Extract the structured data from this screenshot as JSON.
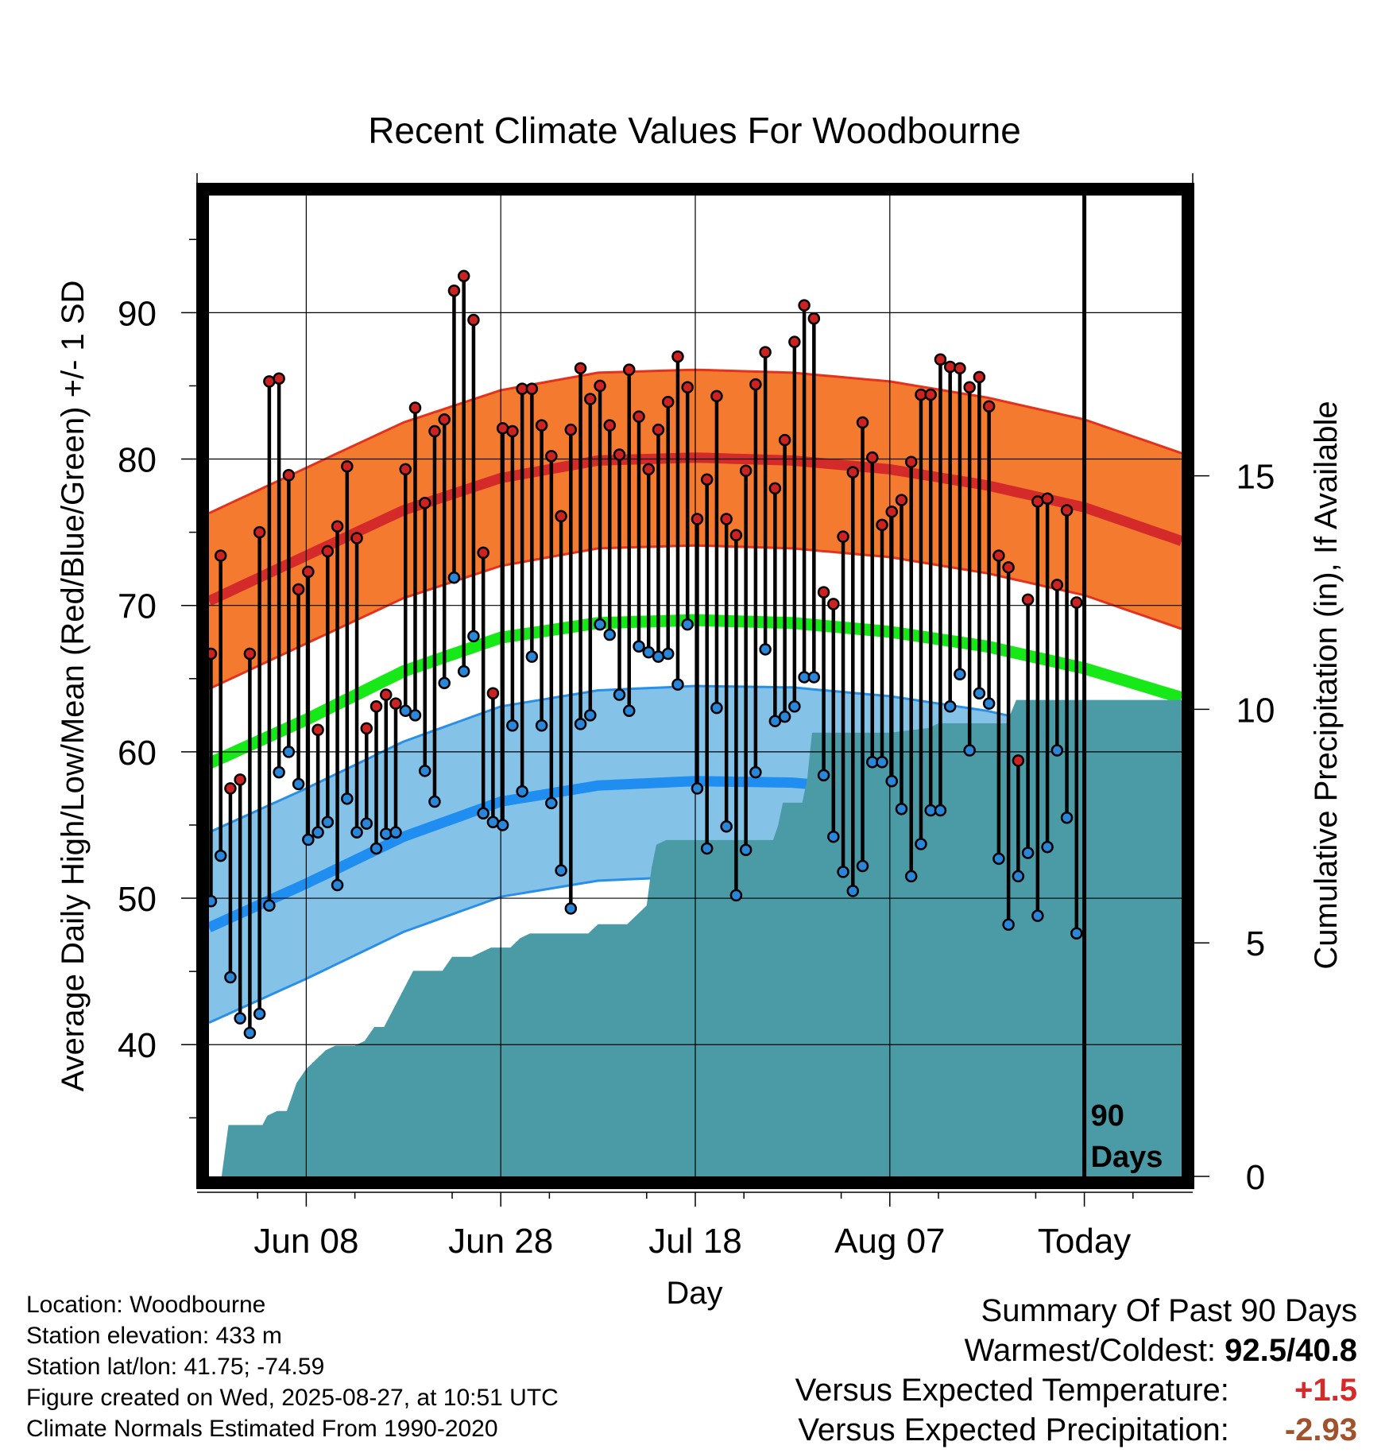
{
  "chart_data": {
    "type": "line",
    "title": "Recent Climate Values For Woodbourne",
    "xlabel": "Day",
    "ylabel": "Average Daily High/Low/Mean (Red/Blue/Green) +/- 1 SD",
    "y2label": "Cumulative Precipitation (in), If Available",
    "ylim": [
      31,
      98
    ],
    "y2lim": [
      0,
      21
    ],
    "yticks": [
      40,
      50,
      60,
      70,
      80,
      90
    ],
    "y2ticks": [
      0,
      5,
      10,
      15
    ],
    "x_start_day_index": 0,
    "x_end_day_index": 100,
    "xticks": [
      {
        "day": 10,
        "label": "Jun 08"
      },
      {
        "day": 30,
        "label": "Jun 28"
      },
      {
        "day": 50,
        "label": "Jul 18"
      },
      {
        "day": 70,
        "label": "Aug 07"
      },
      {
        "day": 90,
        "label": "Today"
      }
    ],
    "today_marker_label": [
      "90",
      "Days"
    ],
    "grid": true,
    "normal_high": {
      "days": [
        0,
        10,
        20,
        30,
        40,
        50,
        60,
        70,
        80,
        90,
        100
      ],
      "mean": [
        70.3,
        73.4,
        76.5,
        78.7,
        79.9,
        80.1,
        79.9,
        79.3,
        78.2,
        76.7,
        74.4
      ],
      "sd": 6.0
    },
    "normal_mean": {
      "days": [
        0,
        10,
        20,
        30,
        40,
        50,
        60,
        70,
        80,
        90,
        100
      ],
      "values": [
        59.2,
        62.2,
        65.5,
        67.8,
        68.8,
        69.0,
        68.8,
        68.2,
        67.2,
        65.7,
        63.7
      ]
    },
    "normal_low": {
      "days": [
        0,
        10,
        20,
        30,
        40,
        50,
        60,
        70,
        80,
        90,
        100
      ],
      "mean": [
        48.0,
        51.0,
        54.2,
        56.6,
        57.7,
        58.0,
        57.9,
        57.3,
        56.3,
        54.8,
        52.8
      ],
      "sd": 6.5
    },
    "series": [
      {
        "name": "High",
        "values": [
          66.7,
          73.4,
          57.5,
          58.1,
          66.7,
          75.0,
          85.3,
          85.5,
          78.9,
          71.1,
          72.3,
          61.5,
          73.7,
          75.4,
          79.5,
          74.6,
          61.6,
          63.1,
          63.9,
          63.3,
          79.3,
          83.5,
          77.0,
          81.9,
          82.7,
          91.5,
          92.5,
          89.5,
          73.6,
          64.0,
          82.1,
          81.9,
          84.8,
          84.8,
          82.3,
          80.2,
          76.1,
          82.0,
          86.2,
          84.1,
          85.0,
          82.3,
          80.3,
          86.1,
          82.9,
          79.3,
          82.0,
          83.9,
          87.0,
          84.9,
          75.9,
          78.6,
          84.3,
          75.9,
          74.8,
          79.2,
          85.1,
          87.3,
          78.0,
          81.3,
          88.0,
          90.5,
          89.6,
          70.9,
          70.1,
          74.7,
          79.1,
          82.5,
          80.1,
          75.5,
          76.4,
          77.2,
          79.8,
          84.4,
          84.4,
          86.8,
          86.3,
          86.2,
          84.9,
          85.6,
          83.6,
          73.4,
          72.6,
          59.4,
          70.4,
          77.1,
          77.3,
          71.4,
          76.5,
          70.2
        ]
      },
      {
        "name": "Low",
        "values": [
          49.8,
          52.9,
          44.6,
          41.8,
          40.8,
          42.1,
          49.5,
          58.6,
          60.0,
          57.8,
          54.0,
          54.5,
          55.2,
          50.9,
          56.8,
          54.5,
          55.1,
          53.4,
          54.4,
          54.5,
          62.8,
          62.5,
          58.7,
          56.6,
          64.7,
          71.9,
          65.5,
          67.9,
          55.8,
          55.2,
          55.0,
          61.8,
          57.3,
          66.5,
          61.8,
          56.5,
          51.9,
          49.3,
          61.9,
          62.5,
          68.7,
          68.0,
          63.9,
          62.8,
          67.2,
          66.8,
          66.5,
          66.7,
          64.6,
          68.7,
          57.5,
          53.4,
          63.0,
          54.9,
          50.2,
          53.3,
          58.6,
          67.0,
          62.1,
          62.4,
          63.1,
          65.1,
          65.1,
          58.4,
          54.2,
          51.8,
          50.5,
          52.2,
          59.3,
          59.3,
          58.0,
          56.1,
          51.5,
          53.7,
          56.0,
          56.0,
          63.1,
          65.3,
          60.1,
          64.0,
          63.3,
          52.7,
          48.2,
          51.5,
          53.1,
          48.8,
          53.5,
          60.1,
          55.5,
          47.6
        ]
      }
    ],
    "precip_cumulative": {
      "days": [
        0,
        1.3,
        2.0,
        5.5,
        6.0,
        7.0,
        8.0,
        9.0,
        10.0,
        11.0,
        12.0,
        13.0,
        14.0,
        15.0,
        16.0,
        17.0,
        18.0,
        19.0,
        20.0,
        21.0,
        23.0,
        24.0,
        25.0,
        27.0,
        28.0,
        29.0,
        31.0,
        32.0,
        33.0,
        34.0,
        35.0,
        39.0,
        40.0,
        43.0,
        45.0,
        45.5,
        46.0,
        47.0,
        58.0,
        58.5,
        59.0,
        61.0,
        61.5,
        62.0,
        66.0,
        68.0,
        70.0,
        74.0,
        75.0,
        82.0,
        83.0,
        90.0,
        100.0
      ],
      "values": [
        0,
        0,
        1.1,
        1.1,
        1.3,
        1.4,
        1.4,
        2.0,
        2.3,
        2.5,
        2.7,
        2.8,
        2.8,
        2.8,
        2.9,
        3.2,
        3.2,
        3.6,
        4.0,
        4.4,
        4.4,
        4.4,
        4.7,
        4.7,
        4.8,
        4.9,
        4.9,
        5.1,
        5.2,
        5.2,
        5.2,
        5.2,
        5.4,
        5.4,
        5.8,
        6.6,
        7.1,
        7.2,
        7.2,
        7.5,
        8.0,
        8.0,
        8.5,
        9.5,
        9.5,
        9.5,
        9.5,
        9.6,
        9.7,
        9.7,
        10.2,
        10.2,
        10.2
      ]
    }
  },
  "info": {
    "location": "Location: Woodbourne",
    "elevation": "Station elevation: 433 m",
    "latlon": "Station lat/lon: 41.75; -74.59",
    "created": "Figure created on Wed, 2025-08-27, at 10:51 UTC",
    "normals": "Climate Normals Estimated From 1990-2020"
  },
  "summary": {
    "title": "Summary Of Past 90 Days",
    "warm_cold_label": "Warmest/Coldest:",
    "warm_cold_value": "92.5/40.8",
    "temp_label": "Versus Expected Temperature:",
    "temp_value": "+1.5",
    "precip_label": "Versus Expected Precipitation:",
    "precip_value": "-2.93"
  },
  "colors": {
    "high_band": "#f47a30",
    "high_edge": "#e3321e",
    "high_mean": "#d42a2a",
    "low_band": "#85c2e8",
    "low_edge": "#2a8fe6",
    "low_mean": "#1f8ef0",
    "mean_line": "#17e817",
    "precip": "#4a9ba6",
    "high_dot": "#cc2222",
    "low_dot": "#2a86d8",
    "temp_value": "#d42a2a",
    "precip_value": "#a0522d"
  }
}
